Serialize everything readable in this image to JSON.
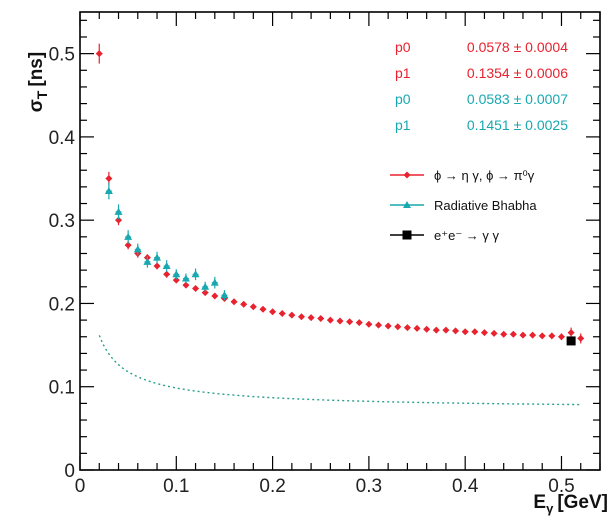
{
  "chart_data": {
    "type": "scatter",
    "xlabel": "E",
    "xlabel_sub": "γ",
    "xlabel_unit": "[GeV]",
    "ylabel": "σ",
    "ylabel_sub": "T",
    "ylabel_unit": "[ns]",
    "xlim": [
      0,
      0.54
    ],
    "ylim": [
      0,
      0.55
    ],
    "x_ticks": [
      0,
      0.1,
      0.2,
      0.3,
      0.4,
      0.5
    ],
    "x_tick_labels": [
      "0",
      "0.1",
      "0.2",
      "0.3",
      "0.4",
      "0.5"
    ],
    "y_ticks": [
      0,
      0.1,
      0.2,
      0.3,
      0.4,
      0.5
    ],
    "y_tick_labels": [
      "0",
      "0.1",
      "0.2",
      "0.3",
      "0.4",
      "0.5"
    ],
    "grid": false,
    "legend_position": "top-right",
    "fit_parameters": [
      {
        "label": "p0",
        "value": "0.0578 ± 0.0004",
        "color": "#e8222e"
      },
      {
        "label": "p1",
        "value": "0.1354 ± 0.0006",
        "color": "#e8222e"
      },
      {
        "label": "p0",
        "value": "0.0583 ± 0.0007",
        "color": "#19a8b0"
      },
      {
        "label": "p1",
        "value": "0.1451 ± 0.0025",
        "color": "#19a8b0"
      }
    ],
    "fit_curve": {
      "color": "#2a9e8c",
      "x_min": 0.02,
      "x_max": 0.52
    },
    "legend": [
      {
        "label": "ϕ → η γ, ϕ → π⁰γ",
        "color": "#e8222e",
        "marker": "diamond"
      },
      {
        "label": "Radiative Bhabha",
        "color": "#19a8b0",
        "marker": "triangle"
      },
      {
        "label": "e⁺e⁻ → γ γ",
        "color": "#000000",
        "marker": "square"
      }
    ],
    "series": [
      {
        "name": "ϕ → η γ, ϕ → π⁰γ",
        "color": "#e8222e",
        "marker": "diamond",
        "x": [
          0.02,
          0.03,
          0.04,
          0.05,
          0.06,
          0.07,
          0.08,
          0.09,
          0.1,
          0.11,
          0.12,
          0.13,
          0.14,
          0.15,
          0.16,
          0.17,
          0.18,
          0.19,
          0.2,
          0.21,
          0.22,
          0.23,
          0.24,
          0.25,
          0.26,
          0.27,
          0.28,
          0.29,
          0.3,
          0.31,
          0.32,
          0.33,
          0.34,
          0.35,
          0.36,
          0.37,
          0.38,
          0.39,
          0.4,
          0.41,
          0.42,
          0.43,
          0.44,
          0.45,
          0.46,
          0.47,
          0.48,
          0.49,
          0.5,
          0.51,
          0.52
        ],
        "y": [
          0.5,
          0.35,
          0.3,
          0.27,
          0.26,
          0.255,
          0.245,
          0.235,
          0.228,
          0.222,
          0.218,
          0.213,
          0.209,
          0.206,
          0.202,
          0.199,
          0.196,
          0.193,
          0.19,
          0.188,
          0.186,
          0.184,
          0.183,
          0.182,
          0.18,
          0.179,
          0.178,
          0.177,
          0.175,
          0.174,
          0.173,
          0.172,
          0.171,
          0.17,
          0.169,
          0.168,
          0.168,
          0.167,
          0.166,
          0.166,
          0.165,
          0.164,
          0.163,
          0.163,
          0.162,
          0.162,
          0.161,
          0.161,
          0.16,
          0.165,
          0.158
        ],
        "err": [
          0.012,
          0.008,
          0.006,
          0.005,
          0.005,
          0.004,
          0.004,
          0.004,
          0.003,
          0.003,
          0.003,
          0.003,
          0.003,
          0.003,
          0.003,
          0.003,
          0.003,
          0.003,
          0.003,
          0.003,
          0.003,
          0.003,
          0.003,
          0.003,
          0.003,
          0.003,
          0.003,
          0.003,
          0.003,
          0.003,
          0.003,
          0.003,
          0.003,
          0.003,
          0.003,
          0.003,
          0.003,
          0.003,
          0.003,
          0.003,
          0.003,
          0.003,
          0.003,
          0.003,
          0.003,
          0.003,
          0.003,
          0.003,
          0.004,
          0.006,
          0.006
        ]
      },
      {
        "name": "Radiative Bhabha",
        "color": "#19a8b0",
        "marker": "triangle",
        "x": [
          0.03,
          0.04,
          0.05,
          0.06,
          0.07,
          0.08,
          0.09,
          0.1,
          0.11,
          0.12,
          0.13,
          0.14,
          0.15
        ],
        "y": [
          0.335,
          0.31,
          0.28,
          0.265,
          0.25,
          0.255,
          0.245,
          0.235,
          0.23,
          0.235,
          0.22,
          0.225,
          0.21
        ],
        "err": [
          0.01,
          0.009,
          0.008,
          0.007,
          0.007,
          0.007,
          0.007,
          0.006,
          0.006,
          0.007,
          0.006,
          0.007,
          0.006
        ]
      },
      {
        "name": "e⁺e⁻ → γ γ",
        "color": "#000000",
        "marker": "square",
        "x": [
          0.51
        ],
        "y": [
          0.155
        ],
        "err": [
          0.002
        ]
      }
    ]
  }
}
